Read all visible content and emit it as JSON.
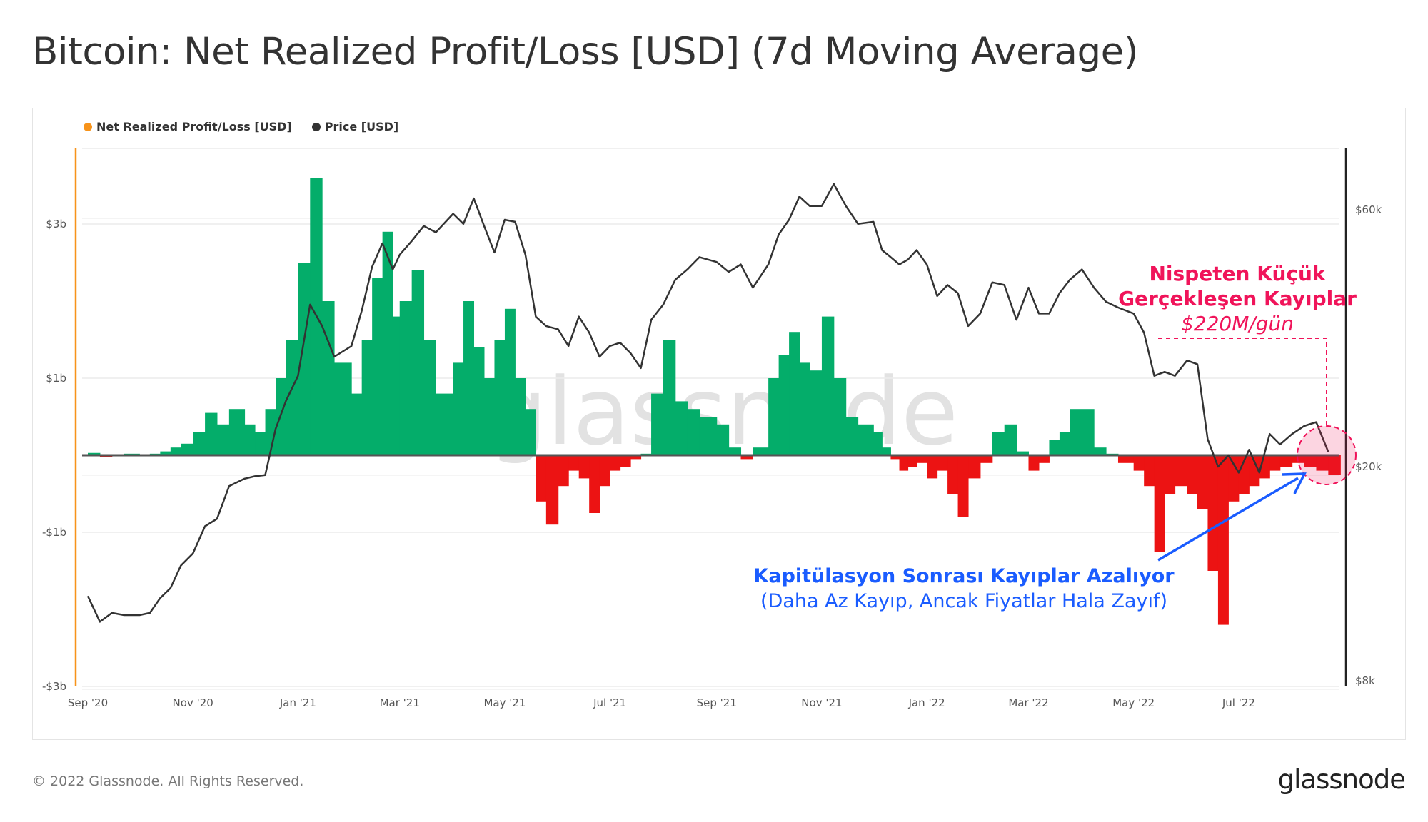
{
  "title": "Bitcoin: Net Realized Profit/Loss [USD] (7d Moving Average)",
  "footer": "© 2022 Glassnode. All Rights Reserved.",
  "logo": "glassnode",
  "watermark": "glassnode",
  "colors": {
    "profit": "#04ad6a",
    "loss": "#ec1313",
    "price": "#333333",
    "nrpl_legend": "#f7931a",
    "annotation_red": "#f0145a",
    "annotation_blue": "#1a5cff"
  },
  "annotations": {
    "red_line1": "Nispeten Küçük",
    "red_line2": "Gerçekleşen Kayıplar",
    "red_line3": "$220M/gün",
    "blue_line1": "Kapitülasyon Sonrası Kayıplar Azalıyor",
    "blue_line2": "(Daha Az Kayıp, Ancak Fiyatlar Hala Zayıf)"
  },
  "chart_data": {
    "type": "bar+line",
    "title": "Bitcoin: Net Realized Profit/Loss [USD] (7d Moving Average)",
    "legend": {
      "position": "top-left",
      "items": [
        "Net Realized Profit/Loss [USD]",
        "Price [USD]"
      ]
    },
    "left_axis": {
      "unit": "USD billions",
      "range": [
        -3,
        3.7
      ],
      "ticks": [
        "$3b",
        "$1b",
        "-$1b",
        "-$3b"
      ],
      "tick_values": [
        3,
        1,
        -1,
        -3
      ]
    },
    "right_axis": {
      "unit": "USD thousands",
      "scale": "log",
      "ticks": [
        "$60k",
        "$20k",
        "$8k"
      ],
      "tick_values": [
        60,
        20,
        8
      ]
    },
    "x_ticks": [
      "Sep '20",
      "Nov '20",
      "Jan '21",
      "Mar '21",
      "May '21",
      "Jul '21",
      "Sep '21",
      "Nov '21",
      "Jan '22",
      "Mar '22",
      "May '22",
      "Jul '22"
    ],
    "x_tick_dates": [
      "2020-09-01",
      "2020-11-01",
      "2021-01-01",
      "2021-03-01",
      "2021-05-01",
      "2021-07-01",
      "2021-09-01",
      "2021-11-01",
      "2022-01-01",
      "2022-03-01",
      "2022-05-01",
      "2022-07-01"
    ],
    "grid": true,
    "series": [
      {
        "name": "Net Realized Profit/Loss [USD]",
        "unit": "USD billions"
      },
      {
        "name": "Price [USD]",
        "unit": "USD thousands"
      }
    ],
    "points": [
      [
        "2020-09-01",
        11.5,
        0.03
      ],
      [
        "2020-09-08",
        10.3,
        -0.02
      ],
      [
        "2020-09-15",
        10.7,
        0.01
      ],
      [
        "2020-09-22",
        10.6,
        0.02
      ],
      [
        "2020-10-01",
        10.6,
        0.01
      ],
      [
        "2020-10-07",
        10.7,
        0.02
      ],
      [
        "2020-10-13",
        11.4,
        0.05
      ],
      [
        "2020-10-19",
        11.9,
        0.1
      ],
      [
        "2020-10-25",
        13.1,
        0.15
      ],
      [
        "2020-11-01",
        13.8,
        0.3
      ],
      [
        "2020-11-08",
        15.5,
        0.55
      ],
      [
        "2020-11-15",
        16.0,
        0.4
      ],
      [
        "2020-11-22",
        18.4,
        0.6
      ],
      [
        "2020-12-01",
        19.0,
        0.4
      ],
      [
        "2020-12-07",
        19.2,
        0.3
      ],
      [
        "2020-12-13",
        19.3,
        0.6
      ],
      [
        "2020-12-19",
        23.5,
        1.0
      ],
      [
        "2020-12-25",
        26.5,
        1.5
      ],
      [
        "2021-01-01",
        29.5,
        2.5
      ],
      [
        "2021-01-08",
        40.0,
        3.6
      ],
      [
        "2021-01-15",
        36.5,
        2.0
      ],
      [
        "2021-01-22",
        32.0,
        1.2
      ],
      [
        "2021-02-01",
        33.5,
        0.8
      ],
      [
        "2021-02-07",
        39.0,
        1.5
      ],
      [
        "2021-02-13",
        47.0,
        2.3
      ],
      [
        "2021-02-19",
        52.0,
        2.9
      ],
      [
        "2021-02-25",
        46.5,
        1.8
      ],
      [
        "2021-03-01",
        49.5,
        2.0
      ],
      [
        "2021-03-08",
        52.5,
        2.4
      ],
      [
        "2021-03-15",
        56.0,
        1.5
      ],
      [
        "2021-03-22",
        54.5,
        0.8
      ],
      [
        "2021-04-01",
        59.0,
        1.2
      ],
      [
        "2021-04-07",
        56.5,
        2.0
      ],
      [
        "2021-04-13",
        63.0,
        1.4
      ],
      [
        "2021-04-19",
        56.0,
        1.0
      ],
      [
        "2021-04-25",
        50.0,
        1.5
      ],
      [
        "2021-05-01",
        57.5,
        1.9
      ],
      [
        "2021-05-07",
        57.0,
        1.0
      ],
      [
        "2021-05-13",
        49.5,
        0.6
      ],
      [
        "2021-05-19",
        38.0,
        -0.6
      ],
      [
        "2021-05-25",
        36.5,
        -0.9
      ],
      [
        "2021-06-01",
        36.0,
        -0.4
      ],
      [
        "2021-06-07",
        33.5,
        -0.2
      ],
      [
        "2021-06-13",
        38.0,
        -0.3
      ],
      [
        "2021-06-19",
        35.5,
        -0.75
      ],
      [
        "2021-06-25",
        32.0,
        -0.4
      ],
      [
        "2021-07-01",
        33.5,
        -0.2
      ],
      [
        "2021-07-07",
        34.0,
        -0.15
      ],
      [
        "2021-07-13",
        32.5,
        -0.05
      ],
      [
        "2021-07-19",
        30.5,
        0.02
      ],
      [
        "2021-07-25",
        37.5,
        0.8
      ],
      [
        "2021-08-01",
        40.0,
        1.5
      ],
      [
        "2021-08-08",
        44.5,
        0.7
      ],
      [
        "2021-08-15",
        46.5,
        0.6
      ],
      [
        "2021-08-22",
        49.0,
        0.5
      ],
      [
        "2021-09-01",
        48.0,
        0.4
      ],
      [
        "2021-09-08",
        46.0,
        0.1
      ],
      [
        "2021-09-15",
        47.5,
        -0.05
      ],
      [
        "2021-09-22",
        43.0,
        0.1
      ],
      [
        "2021-10-01",
        47.5,
        1.0
      ],
      [
        "2021-10-07",
        54.0,
        1.3
      ],
      [
        "2021-10-13",
        57.5,
        1.6
      ],
      [
        "2021-10-19",
        63.5,
        1.2
      ],
      [
        "2021-10-25",
        61.0,
        1.1
      ],
      [
        "2021-11-01",
        61.0,
        1.8
      ],
      [
        "2021-11-08",
        67.0,
        1.0
      ],
      [
        "2021-11-15",
        61.0,
        0.5
      ],
      [
        "2021-11-22",
        56.5,
        0.4
      ],
      [
        "2021-12-01",
        57.0,
        0.3
      ],
      [
        "2021-12-06",
        50.5,
        0.1
      ],
      [
        "2021-12-11",
        49.0,
        -0.05
      ],
      [
        "2021-12-16",
        47.5,
        -0.2
      ],
      [
        "2021-12-21",
        48.5,
        -0.15
      ],
      [
        "2021-12-26",
        50.5,
        -0.1
      ],
      [
        "2022-01-01",
        47.5,
        -0.3
      ],
      [
        "2022-01-07",
        41.5,
        -0.2
      ],
      [
        "2022-01-13",
        43.5,
        -0.5
      ],
      [
        "2022-01-19",
        42.0,
        -0.8
      ],
      [
        "2022-01-25",
        36.5,
        -0.3
      ],
      [
        "2022-02-01",
        38.5,
        -0.1
      ],
      [
        "2022-02-08",
        44.0,
        0.3
      ],
      [
        "2022-02-15",
        43.5,
        0.4
      ],
      [
        "2022-02-22",
        37.5,
        0.05
      ],
      [
        "2022-03-01",
        43.0,
        -0.2
      ],
      [
        "2022-03-07",
        38.5,
        -0.1
      ],
      [
        "2022-03-13",
        38.5,
        0.2
      ],
      [
        "2022-03-19",
        42.0,
        0.3
      ],
      [
        "2022-03-25",
        44.5,
        0.6
      ],
      [
        "2022-04-01",
        46.5,
        0.6
      ],
      [
        "2022-04-08",
        43.0,
        0.1
      ],
      [
        "2022-04-15",
        40.5,
        0.02
      ],
      [
        "2022-04-22",
        39.5,
        -0.1
      ],
      [
        "2022-05-01",
        38.5,
        -0.2
      ],
      [
        "2022-05-07",
        35.5,
        -0.4
      ],
      [
        "2022-05-13",
        29.5,
        -1.25
      ],
      [
        "2022-05-19",
        30.0,
        -0.5
      ],
      [
        "2022-05-25",
        29.5,
        -0.4
      ],
      [
        "2022-06-01",
        31.5,
        -0.5
      ],
      [
        "2022-06-07",
        31.0,
        -0.7
      ],
      [
        "2022-06-13",
        22.5,
        -1.5
      ],
      [
        "2022-06-19",
        20.0,
        -2.2
      ],
      [
        "2022-06-25",
        21.0,
        -0.6
      ],
      [
        "2022-07-01",
        19.5,
        -0.5
      ],
      [
        "2022-07-07",
        21.5,
        -0.4
      ],
      [
        "2022-07-13",
        19.5,
        -0.3
      ],
      [
        "2022-07-19",
        23.0,
        -0.2
      ],
      [
        "2022-07-25",
        22.0,
        -0.15
      ],
      [
        "2022-08-01",
        23.0,
        -0.1
      ],
      [
        "2022-08-08",
        23.8,
        -0.15
      ],
      [
        "2022-08-15",
        24.2,
        -0.2
      ],
      [
        "2022-08-22",
        21.3,
        -0.25
      ]
    ],
    "point_fields": [
      "date",
      "price_usd_k",
      "nrpl_usd_b"
    ]
  }
}
